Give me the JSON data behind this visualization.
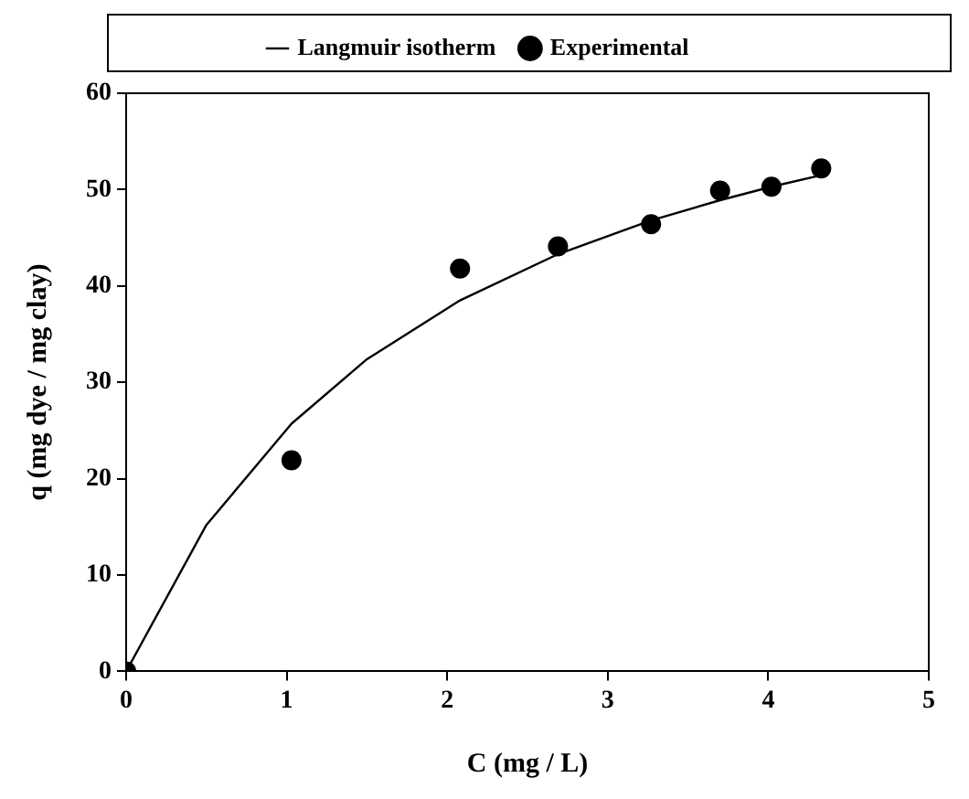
{
  "chart_data": {
    "type": "scatter",
    "xlabel": "C (mg / L)",
    "ylabel": "q (mg dye / mg clay)",
    "xlim": [
      0,
      5
    ],
    "xticks": [
      0,
      1,
      2,
      3,
      4,
      5
    ],
    "ylim": [
      0,
      60
    ],
    "yticks": [
      0,
      10,
      20,
      30,
      40,
      50,
      60
    ],
    "grid": false,
    "legend": "top",
    "series": [
      {
        "name": "Langmuir isotherm",
        "type": "line",
        "marker": "none",
        "color": "#000000",
        "x": [
          0,
          0.5,
          1.03,
          1.5,
          2.08,
          2.69,
          3.27,
          3.7,
          4.02,
          4.33
        ],
        "values": [
          0,
          15.2,
          25.7,
          32.4,
          38.5,
          43.3,
          46.8,
          48.9,
          50.3,
          51.5
        ]
      },
      {
        "name": "Experimental",
        "type": "scatter",
        "marker": "circle",
        "color": "#000000",
        "x": [
          0,
          1.03,
          2.08,
          2.69,
          3.27,
          3.7,
          4.02,
          4.33
        ],
        "values": [
          0,
          21.9,
          41.8,
          44.1,
          46.4,
          49.9,
          50.3,
          52.2
        ]
      }
    ]
  }
}
